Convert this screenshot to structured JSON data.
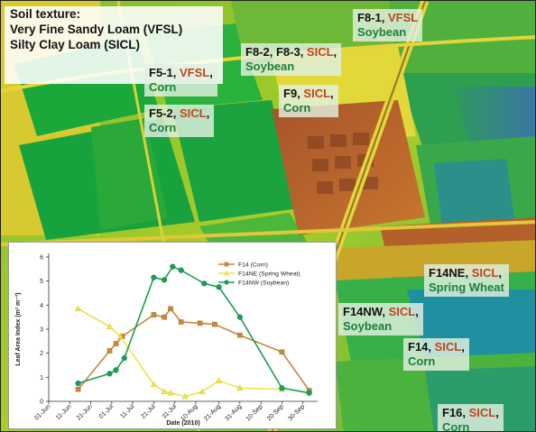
{
  "soil_legend": {
    "title": "Soil texture:",
    "line1": "Very Fine Sandy Loam (VFSL)",
    "line2": "Silty Clay Loam (SICL)"
  },
  "fields": [
    {
      "id": "f8-1",
      "code": "F8-1",
      "texture": "VFSL",
      "crop": "Soybean"
    },
    {
      "id": "f8-2-3",
      "code": "F8-2, F8-3",
      "texture": "SICL",
      "crop": "Soybean"
    },
    {
      "id": "f5-1",
      "code": "F5-1",
      "texture": "VFSL",
      "crop": "Corn"
    },
    {
      "id": "f9",
      "code": "F9",
      "texture": "SICL",
      "crop": "Corn"
    },
    {
      "id": "f5-2",
      "code": "F5-2",
      "texture": "SICL",
      "crop": "Corn"
    },
    {
      "id": "f14ne",
      "code": "F14NE",
      "texture": "SICL",
      "crop": "Spring Wheat"
    },
    {
      "id": "f14nw",
      "code": "F14NW",
      "texture": "SICL",
      "crop": "Soybean"
    },
    {
      "id": "f14",
      "code": "F14",
      "texture": "SICL",
      "crop": "Corn"
    },
    {
      "id": "f16",
      "code": "F16",
      "texture": "SICL",
      "crop": "Corn"
    }
  ],
  "chart_data": {
    "type": "line",
    "title": "",
    "xlabel": "Date (2010)",
    "ylabel": "Leaf Area Index (m² m⁻²)",
    "ylim": [
      0,
      6
    ],
    "yticks": [
      0,
      1,
      2,
      3,
      4,
      5,
      6
    ],
    "xlim": [
      "2010-06-01",
      "2010-10-07"
    ],
    "xticks": [
      {
        "date": "2010-06-01",
        "label": "01-Jun"
      },
      {
        "date": "2010-06-11",
        "label": "11-Jun"
      },
      {
        "date": "2010-06-21",
        "label": "21-Jun"
      },
      {
        "date": "2010-07-01",
        "label": "01-Jul"
      },
      {
        "date": "2010-07-11",
        "label": "11-Jul"
      },
      {
        "date": "2010-07-21",
        "label": "21-Jul"
      },
      {
        "date": "2010-07-31",
        "label": "31-Jul"
      },
      {
        "date": "2010-08-10",
        "label": "10-Aug"
      },
      {
        "date": "2010-08-21",
        "label": "21-Aug"
      },
      {
        "date": "2010-08-31",
        "label": "31-Aug"
      },
      {
        "date": "2010-09-10",
        "label": "10-Sep"
      },
      {
        "date": "2010-09-20",
        "label": "20-Sep"
      },
      {
        "date": "2010-09-30",
        "label": "30-Sep"
      }
    ],
    "grid": false,
    "legend_position": "top-right",
    "series": [
      {
        "name": "F14 (Corn)",
        "color": "#c8873a",
        "marker": "square",
        "points": [
          {
            "x": "2010-06-15",
            "y": 0.5
          },
          {
            "x": "2010-06-30",
            "y": 2.1
          },
          {
            "x": "2010-07-03",
            "y": 2.4
          },
          {
            "x": "2010-07-06",
            "y": 2.7
          },
          {
            "x": "2010-07-21",
            "y": 3.6
          },
          {
            "x": "2010-07-26",
            "y": 3.5
          },
          {
            "x": "2010-07-29",
            "y": 3.85
          },
          {
            "x": "2010-08-03",
            "y": 3.3
          },
          {
            "x": "2010-08-12",
            "y": 3.25
          },
          {
            "x": "2010-08-19",
            "y": 3.2
          },
          {
            "x": "2010-08-31",
            "y": 2.75
          },
          {
            "x": "2010-09-20",
            "y": 2.05
          },
          {
            "x": "2010-10-03",
            "y": 0.45
          }
        ]
      },
      {
        "name": "F14NE (Spring Wheat)",
        "color": "#f2e24a",
        "marker": "triangle",
        "points": [
          {
            "x": "2010-06-15",
            "y": 3.85
          },
          {
            "x": "2010-06-30",
            "y": 3.1
          },
          {
            "x": "2010-07-05",
            "y": 2.7
          },
          {
            "x": "2010-07-21",
            "y": 0.7
          },
          {
            "x": "2010-07-26",
            "y": 0.4
          },
          {
            "x": "2010-07-29",
            "y": 0.35
          },
          {
            "x": "2010-08-05",
            "y": 0.2
          },
          {
            "x": "2010-08-13",
            "y": 0.4
          },
          {
            "x": "2010-08-21",
            "y": 0.85
          },
          {
            "x": "2010-08-31",
            "y": 0.55
          },
          {
            "x": "2010-09-20",
            "y": 0.5
          }
        ]
      },
      {
        "name": "F14NW (Soybean)",
        "color": "#1a9e55",
        "marker": "circle",
        "points": [
          {
            "x": "2010-06-15",
            "y": 0.75
          },
          {
            "x": "2010-06-30",
            "y": 1.15
          },
          {
            "x": "2010-07-03",
            "y": 1.3
          },
          {
            "x": "2010-07-07",
            "y": 1.8
          },
          {
            "x": "2010-07-21",
            "y": 5.15
          },
          {
            "x": "2010-07-26",
            "y": 5.05
          },
          {
            "x": "2010-07-30",
            "y": 5.6
          },
          {
            "x": "2010-08-03",
            "y": 5.45
          },
          {
            "x": "2010-08-14",
            "y": 4.9
          },
          {
            "x": "2010-08-21",
            "y": 4.75
          },
          {
            "x": "2010-08-31",
            "y": 3.5
          },
          {
            "x": "2010-09-20",
            "y": 0.55
          },
          {
            "x": "2010-10-03",
            "y": 0.35
          }
        ]
      }
    ]
  }
}
